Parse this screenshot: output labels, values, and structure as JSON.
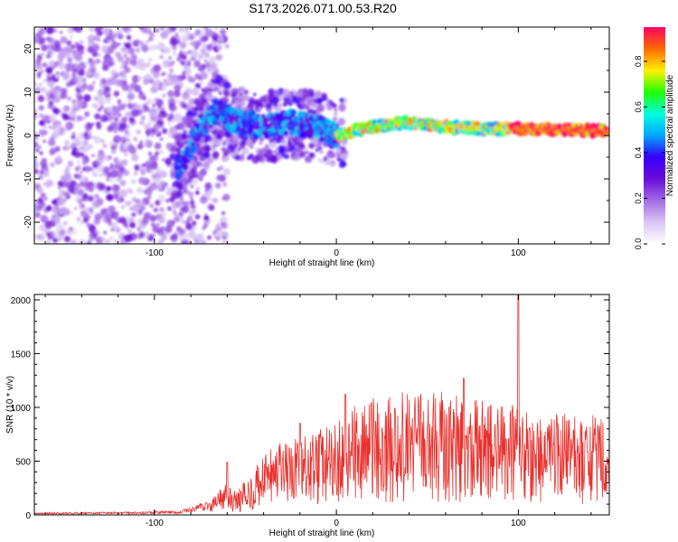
{
  "title": "S173.2026.071.00.53.R20",
  "colors": {
    "snr_line": "#e8302c",
    "colormap": [
      "#ffffff",
      "#d9c6f5",
      "#a46be6",
      "#6a0bd8",
      "#3700ff",
      "#00a6ff",
      "#00ffe0",
      "#22ff00",
      "#ffee00",
      "#ff6a00",
      "#ff0066"
    ]
  },
  "chart_data": [
    {
      "type": "heatmap",
      "xlabel": "Height of straight line (km)",
      "ylabel": "Frequency (Hz)",
      "xlim": [
        -166,
        150
      ],
      "ylim": [
        -25,
        25
      ],
      "xticks": [
        -100,
        0,
        100
      ],
      "yticks": [
        -20,
        -10,
        0,
        10,
        20
      ],
      "colorbar": {
        "label": "Normalized spectral amplitude",
        "range": [
          0,
          0.95
        ],
        "ticks": [
          0.0,
          0.2,
          0.4,
          0.6,
          0.8
        ]
      },
      "ridge": {
        "description_points_km_hz": [
          [
            -85,
            -7
          ],
          [
            -75,
            2
          ],
          [
            -65,
            6
          ],
          [
            -55,
            3
          ],
          [
            -40,
            2
          ],
          [
            -25,
            3
          ],
          [
            -10,
            2
          ],
          [
            0,
            0
          ],
          [
            20,
            2
          ],
          [
            40,
            3
          ],
          [
            60,
            2
          ],
          [
            80,
            1.5
          ],
          [
            100,
            1.5
          ],
          [
            120,
            1.5
          ],
          [
            148,
            1
          ]
        ]
      }
    },
    {
      "type": "line",
      "xlabel": "Height of straight line (km)",
      "ylabel": "SNR (10 * v/v)",
      "xlim": [
        -166,
        150
      ],
      "ylim": [
        0,
        2050
      ],
      "xticks": [
        -100,
        0,
        100
      ],
      "yticks": [
        0,
        500,
        1000,
        1500,
        2000
      ],
      "envelope": {
        "x": [
          -166,
          -120,
          -85,
          -70,
          -62,
          -55,
          -45,
          -35,
          -20,
          -10,
          0,
          10,
          20,
          40,
          60,
          80,
          100,
          120,
          140,
          150
        ],
        "y": [
          15,
          20,
          30,
          100,
          200,
          150,
          300,
          450,
          500,
          550,
          600,
          700,
          750,
          800,
          800,
          750,
          700,
          650,
          650,
          600
        ]
      },
      "peaks": [
        {
          "x": 100,
          "y": 2050
        },
        {
          "x": 70,
          "y": 1270
        },
        {
          "x": 5,
          "y": 1120
        },
        {
          "x": -20,
          "y": 850
        },
        {
          "x": -60,
          "y": 490
        }
      ]
    }
  ]
}
